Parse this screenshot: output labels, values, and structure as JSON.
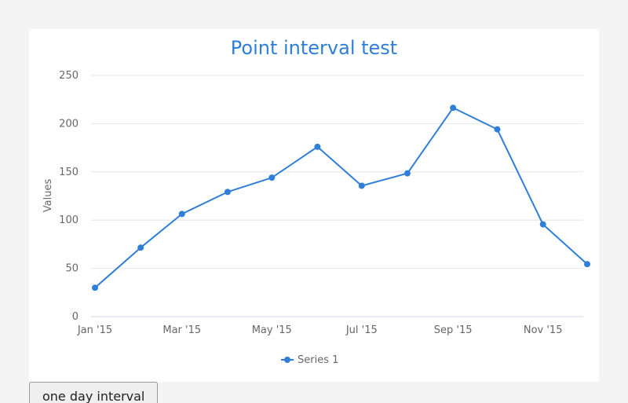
{
  "chart_data": {
    "type": "line",
    "title": "Point interval test",
    "ylabel": "Values",
    "xlabel": "",
    "ylim": [
      0,
      250
    ],
    "y_ticks": [
      0,
      50,
      100,
      150,
      200,
      250
    ],
    "x_range": [
      "2015-01-01",
      "2015-12-01"
    ],
    "x_ticks": [
      {
        "date": "2015-01-01",
        "label": "Jan '15"
      },
      {
        "date": "2015-03-01",
        "label": "Mar '15"
      },
      {
        "date": "2015-05-01",
        "label": "May '15"
      },
      {
        "date": "2015-07-01",
        "label": "Jul '15"
      },
      {
        "date": "2015-09-01",
        "label": "Sep '15"
      },
      {
        "date": "2015-11-01",
        "label": "Nov '15"
      }
    ],
    "grid": "horizontal",
    "legend_position": "bottom-center",
    "series": [
      {
        "name": "Series 1",
        "color": "#2f7ed8",
        "points": [
          {
            "x": "2015-01-01",
            "y": 29.9
          },
          {
            "x": "2015-02-01",
            "y": 71.5
          },
          {
            "x": "2015-03-01",
            "y": 106.4
          },
          {
            "x": "2015-04-01",
            "y": 129.2
          },
          {
            "x": "2015-05-01",
            "y": 144.0
          },
          {
            "x": "2015-06-01",
            "y": 176.0
          },
          {
            "x": "2015-07-01",
            "y": 135.6
          },
          {
            "x": "2015-08-01",
            "y": 148.5
          },
          {
            "x": "2015-09-01",
            "y": 216.4
          },
          {
            "x": "2015-10-01",
            "y": 194.1
          },
          {
            "x": "2015-11-01",
            "y": 95.6
          },
          {
            "x": "2015-12-01",
            "y": 54.4
          }
        ]
      }
    ]
  },
  "controls": {
    "interval_button_label": "one day interval"
  },
  "colors": {
    "grid": "#e6e6e6",
    "axis_line": "#ccd6eb",
    "title": "#2f7ed8"
  }
}
